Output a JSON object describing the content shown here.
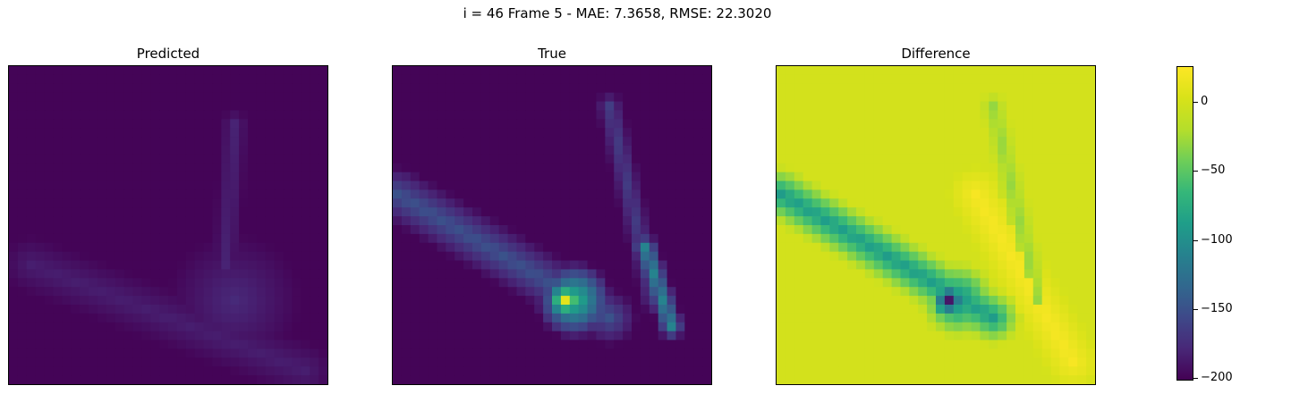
{
  "suptitle": "i = 46 Frame 5 - MAE: 7.3658, RMSE: 22.3020",
  "chart_data": [
    {
      "type": "heatmap",
      "title": "Predicted",
      "colormap": "viridis",
      "value_range": [
        -202,
        26
      ],
      "grid_size": [
        36,
        36
      ],
      "background_value": -200,
      "approximate_features": [
        {
          "shape": "diagonal_band",
          "from": [
            2,
            22
          ],
          "to": [
            33,
            34
          ],
          "value": -185
        },
        {
          "shape": "blob",
          "center": [
            25,
            26
          ],
          "radius": 7,
          "value": -178
        },
        {
          "shape": "vertical_streak",
          "from": [
            25,
            6
          ],
          "to": [
            24,
            22
          ],
          "value": -182
        }
      ]
    },
    {
      "type": "heatmap",
      "title": "True",
      "colormap": "viridis",
      "value_range": [
        -202,
        26
      ],
      "grid_size": [
        36,
        36
      ],
      "background_value": -200,
      "approximate_features": [
        {
          "shape": "diagonal_band",
          "from": [
            0,
            14
          ],
          "to": [
            24,
            28
          ],
          "value": -150
        },
        {
          "shape": "hotspot",
          "center": [
            19,
            26
          ],
          "radius": 2,
          "value": 10
        },
        {
          "shape": "blob",
          "center": [
            20,
            26
          ],
          "radius": 4,
          "value": -60
        },
        {
          "shape": "streak",
          "from": [
            24,
            4
          ],
          "to": [
            29,
            26
          ],
          "value": -165
        },
        {
          "shape": "streak",
          "from": [
            28,
            20
          ],
          "to": [
            31,
            29
          ],
          "value": -110
        }
      ]
    },
    {
      "type": "heatmap",
      "title": "Difference",
      "colormap": "viridis",
      "value_range": [
        -202,
        26
      ],
      "grid_size": [
        36,
        36
      ],
      "background_value": 0,
      "approximate_features": [
        {
          "shape": "diagonal_band",
          "from": [
            0,
            14
          ],
          "to": [
            24,
            28
          ],
          "value": -90
        },
        {
          "shape": "hotspot",
          "center": [
            19,
            26
          ],
          "radius": 2,
          "value": -190
        },
        {
          "shape": "blob",
          "center": [
            20,
            26
          ],
          "radius": 4,
          "value": -110
        },
        {
          "shape": "positive_band",
          "from": [
            22,
            14
          ],
          "to": [
            33,
            33
          ],
          "value": 22
        },
        {
          "shape": "streak",
          "from": [
            24,
            4
          ],
          "to": [
            29,
            26
          ],
          "value": -30
        }
      ]
    }
  ],
  "colorbar": {
    "colormap": "viridis",
    "range": [
      -202,
      26
    ],
    "ticks": [
      {
        "value": 0,
        "label": "0"
      },
      {
        "value": -50,
        "label": "−50"
      },
      {
        "value": -100,
        "label": "−100"
      },
      {
        "value": -150,
        "label": "−150"
      },
      {
        "value": -200,
        "label": "−200"
      }
    ]
  }
}
